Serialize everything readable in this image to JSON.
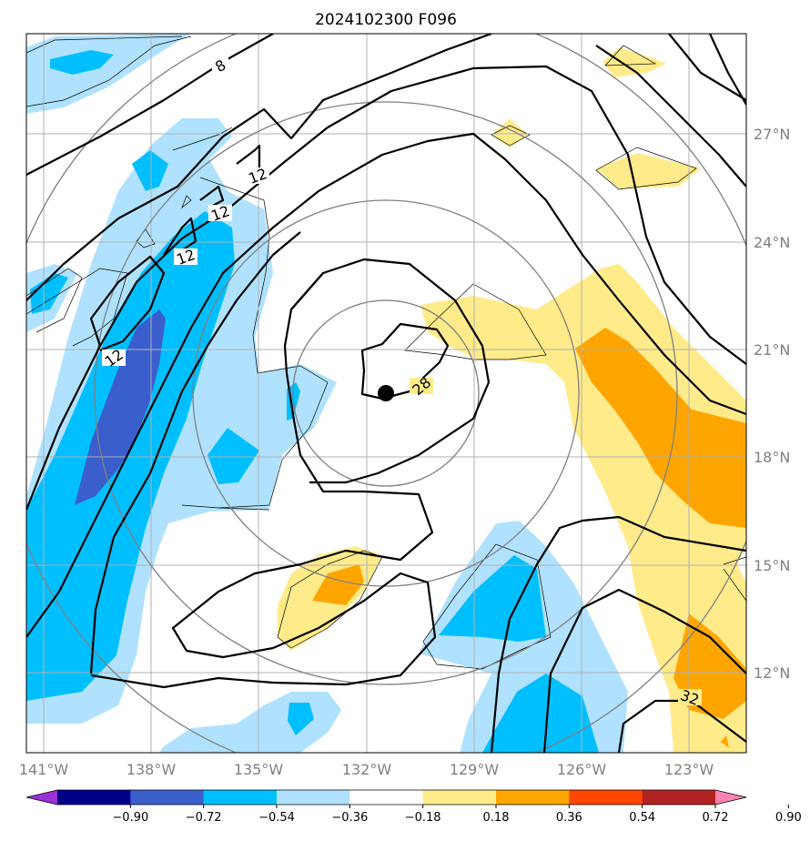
{
  "title": "2024102300 F096",
  "map": {
    "lon_range": [
      -141.3,
      -121.3
    ],
    "lat_range": [
      9.8,
      30.0
    ],
    "lon_ticks": [
      -141,
      -138,
      -135,
      -132,
      -129,
      -126,
      -123
    ],
    "lon_tick_labels": [
      "141°W",
      "138°W",
      "135°W",
      "132°W",
      "129°W",
      "126°W",
      "123°W"
    ],
    "lat_ticks": [
      12,
      15,
      18,
      21,
      24,
      27
    ],
    "lat_tick_labels": [
      "12°N",
      "15°N",
      "18°N",
      "21°N",
      "24°N",
      "27°N"
    ],
    "gridlines": true,
    "storm_center": {
      "lon": -131.5,
      "lat": 19.8
    },
    "range_rings": "concentric gray rings around storm center",
    "contour_labels": [
      "8",
      "12",
      "12",
      "12",
      "12",
      "28",
      "32"
    ]
  },
  "colorbar": {
    "tick_labels": [
      "−0.90",
      "−0.72",
      "−0.54",
      "−0.36",
      "−0.18",
      "0.18",
      "0.36",
      "0.54",
      "0.72",
      "0.90"
    ],
    "colors": [
      "#9b30d9",
      "#00008b",
      "#3a5fcd",
      "#00bfff",
      "#b0e2ff",
      "#ffffff",
      "#ffeb8a",
      "#ffa500",
      "#ff4500",
      "#b22222",
      "#ff82b4"
    ],
    "extend": "both"
  }
}
